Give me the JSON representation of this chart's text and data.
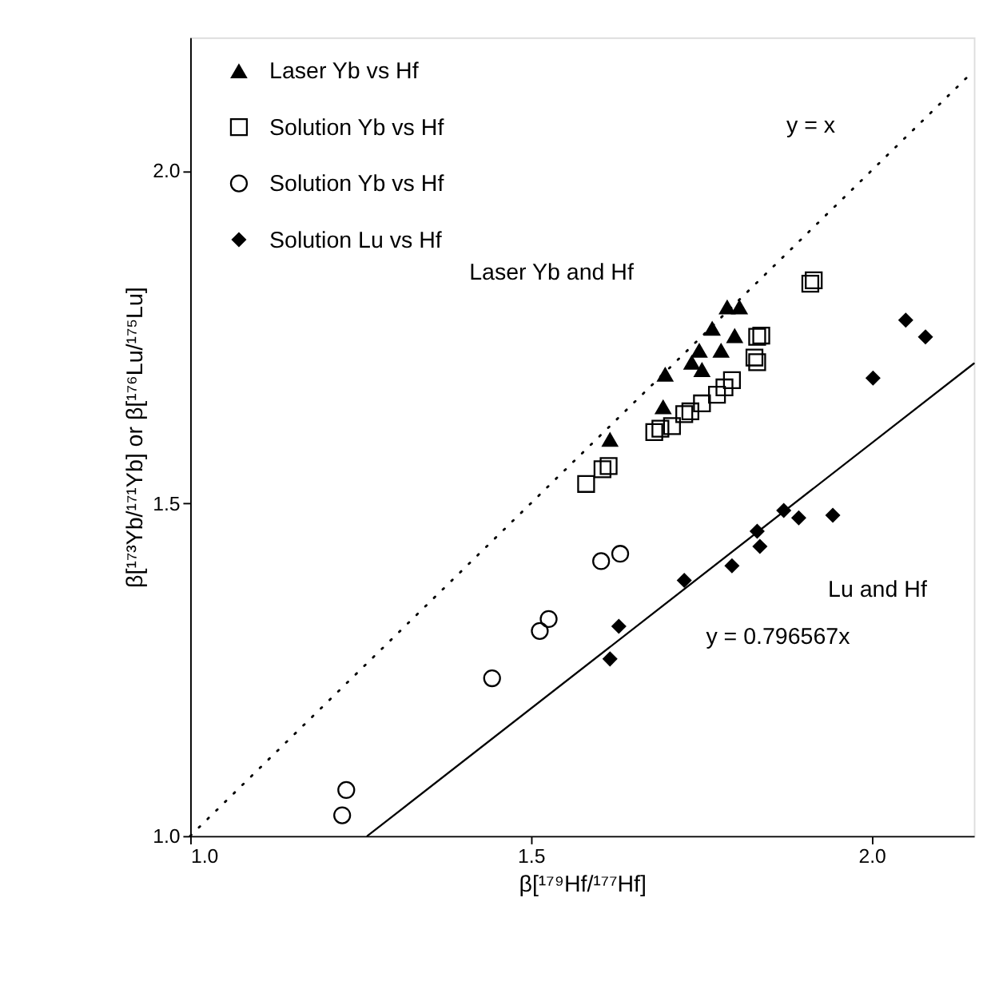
{
  "chart_data": {
    "type": "scatter",
    "xlabel": "β[¹⁷⁹Hf/¹⁷⁷Hf]",
    "ylabel": "β[¹⁷³Yb/¹⁷¹Yb] or β[¹⁷⁶Lu/¹⁷⁵Lu]",
    "xlim": [
      1.0,
      2.15
    ],
    "ylim": [
      1.0,
      2.2
    ],
    "xticks": [
      {
        "value": 1,
        "label": "1.0"
      },
      1.5,
      {
        "value": 2,
        "label": "2.0"
      }
    ],
    "yticks": [
      {
        "value": 1,
        "label": "1.0"
      },
      1.5,
      {
        "value": 2,
        "label": "2.0"
      }
    ],
    "grid": false,
    "legend": "top left",
    "series": [
      {
        "name": "Laser Yb vs Hf",
        "color": "#000000",
        "marker": "triangle",
        "x": [
          1.616,
          1.697,
          1.694,
          1.747,
          1.751,
          1.736,
          1.766,
          1.779,
          1.788,
          1.806,
          1.799
        ],
        "values": [
          1.596,
          1.694,
          1.645,
          1.73,
          1.701,
          1.712,
          1.763,
          1.73,
          1.795,
          1.795,
          1.752
        ]
      },
      {
        "name": "Solution Yb vs Hf",
        "color": "#000000",
        "marker": "square",
        "x": [
          1.581,
          1.605,
          1.614,
          1.681,
          1.69,
          1.707,
          1.725,
          1.734,
          1.751,
          1.773,
          1.784,
          1.795,
          1.828,
          1.832,
          1.838,
          1.832,
          1.91,
          1.915
        ],
        "values": [
          1.529,
          1.551,
          1.556,
          1.607,
          1.612,
          1.616,
          1.634,
          1.638,
          1.65,
          1.663,
          1.674,
          1.685,
          1.719,
          1.712,
          1.752,
          1.75,
          1.83,
          1.835
        ]
      },
      {
        "name": "Solution Yb vs Hf",
        "color": "#000000",
        "marker": "circle",
        "x": [
          1.223,
          1.229,
          1.443,
          1.513,
          1.526,
          1.603,
          1.631
        ],
        "values": [
          1.031,
          1.069,
          1.237,
          1.308,
          1.326,
          1.413,
          1.424
        ]
      },
      {
        "name": "Solution Lu vs Hf",
        "color": "#000000",
        "marker": "diamond",
        "x": [
          1.616,
          1.629,
          1.725,
          1.795,
          1.832,
          1.836,
          1.871,
          1.893,
          1.943,
          2.002,
          2.05,
          2.079
        ],
        "values": [
          1.266,
          1.315,
          1.384,
          1.406,
          1.458,
          1.435,
          1.489,
          1.478,
          1.482,
          1.688,
          1.775,
          1.75
        ]
      },
      {
        "type": "line",
        "color": "#000000",
        "marker": "none",
        "line_style": "dotted",
        "x": [
          1.0,
          2.15
        ],
        "values": [
          1.0,
          2.15
        ]
      },
      {
        "type": "line",
        "color": "#000000",
        "marker": "none",
        "line_style": "solid",
        "x": [
          1.26,
          2.15
        ],
        "values": [
          1.0,
          1.71
        ]
      }
    ],
    "annotations": [
      "y = x",
      "Laser Yb and Hf",
      "Lu and Hf",
      "y = 0.796567x"
    ]
  }
}
